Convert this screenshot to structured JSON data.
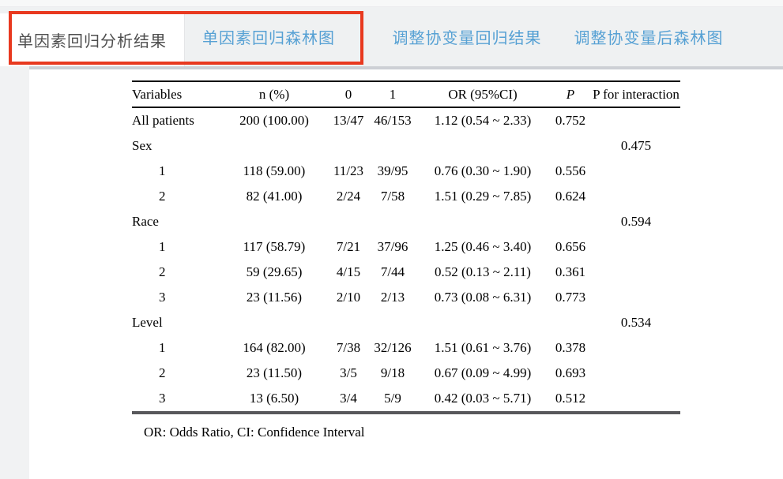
{
  "tab_bar": {
    "tabs": [
      {
        "label": "单因素回归分析结果",
        "active": true
      },
      {
        "label": "单因素回归森林图",
        "active": false
      },
      {
        "label": "调整协变量回归结果",
        "active": false
      },
      {
        "label": "调整协变量后森林图",
        "active": false
      }
    ],
    "active_text_color": "#4f4f4f",
    "inactive_text_color": "#57a1d4"
  },
  "annotation_box": {
    "shape": "rectangle-outline",
    "color": "#e8391f"
  },
  "table": {
    "headers": [
      "Variables",
      "n (%)",
      "0",
      "1",
      "OR (95%CI)",
      "P",
      "P for interaction"
    ],
    "rows": [
      {
        "label": "All patients",
        "indent": false,
        "n": "200 (100.00)",
        "g0": "13/47",
        "g1": "46/153",
        "or": "1.12 (0.54 ~ 2.33)",
        "p": "0.752",
        "pint": ""
      },
      {
        "label": "Sex",
        "indent": false,
        "n": "",
        "g0": "",
        "g1": "",
        "or": "",
        "p": "",
        "pint": "0.475"
      },
      {
        "label": "1",
        "indent": true,
        "n": "118 (59.00)",
        "g0": "11/23",
        "g1": "39/95",
        "or": "0.76 (0.30 ~ 1.90)",
        "p": "0.556",
        "pint": ""
      },
      {
        "label": "2",
        "indent": true,
        "n": "82 (41.00)",
        "g0": "2/24",
        "g1": "7/58",
        "or": "1.51 (0.29 ~ 7.85)",
        "p": "0.624",
        "pint": ""
      },
      {
        "label": "Race",
        "indent": false,
        "n": "",
        "g0": "",
        "g1": "",
        "or": "",
        "p": "",
        "pint": "0.594"
      },
      {
        "label": "1",
        "indent": true,
        "n": "117 (58.79)",
        "g0": "7/21",
        "g1": "37/96",
        "or": "1.25 (0.46 ~ 3.40)",
        "p": "0.656",
        "pint": ""
      },
      {
        "label": "2",
        "indent": true,
        "n": "59 (29.65)",
        "g0": "4/15",
        "g1": "7/44",
        "or": "0.52 (0.13 ~ 2.11)",
        "p": "0.361",
        "pint": ""
      },
      {
        "label": "3",
        "indent": true,
        "n": "23 (11.56)",
        "g0": "2/10",
        "g1": "2/13",
        "or": "0.73 (0.08 ~ 6.31)",
        "p": "0.773",
        "pint": ""
      },
      {
        "label": "Level",
        "indent": false,
        "n": "",
        "g0": "",
        "g1": "",
        "or": "",
        "p": "",
        "pint": "0.534"
      },
      {
        "label": "1",
        "indent": true,
        "n": "164 (82.00)",
        "g0": "7/38",
        "g1": "32/126",
        "or": "1.51 (0.61 ~ 3.76)",
        "p": "0.378",
        "pint": ""
      },
      {
        "label": "2",
        "indent": true,
        "n": "23 (11.50)",
        "g0": "3/5",
        "g1": "9/18",
        "or": "0.67 (0.09 ~ 4.99)",
        "p": "0.693",
        "pint": ""
      },
      {
        "label": "3",
        "indent": true,
        "n": "13 (6.50)",
        "g0": "3/4",
        "g1": "5/9",
        "or": "0.42 (0.03 ~ 5.71)",
        "p": "0.512",
        "pint": ""
      }
    ],
    "footnote": "OR: Odds Ratio, CI: Confidence Interval"
  }
}
